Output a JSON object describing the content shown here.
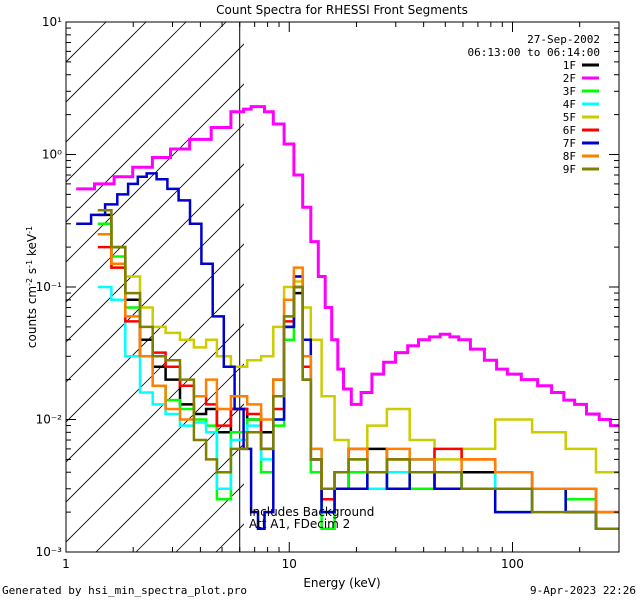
{
  "chart_data": {
    "type": "line",
    "title": "Count Spectra for RHESSI Front Segments",
    "xlabel": "Energy (keV)",
    "ylabel": "counts cm⁻² s⁻¹ keV⁻¹",
    "xscale": "log",
    "yscale": "log",
    "xlim": [
      1,
      300
    ],
    "ylim": [
      0.001,
      10
    ],
    "x_ticks": [
      {
        "value": 1,
        "label": "1"
      },
      {
        "value": 10,
        "label": "10"
      },
      {
        "value": 100,
        "label": "100"
      }
    ],
    "y_ticks": [
      {
        "value": 0.001,
        "label": "10⁻³"
      },
      {
        "value": 0.01,
        "label": "10⁻²"
      },
      {
        "value": 0.1,
        "label": "10⁻¹"
      },
      {
        "value": 1,
        "label": "10⁰"
      },
      {
        "value": 10,
        "label": "10¹"
      }
    ],
    "date": "27-Sep-2002",
    "time_range": "06:13:00 to 06:14:00",
    "hatched_below_kev": 6,
    "annotations": [
      "Includes Background",
      "Att A1, FDecim 2"
    ],
    "footer_left": "Generated by hsi_min_spectra_plot.pro",
    "footer_right": "9-Apr-2023 22:26",
    "series": [
      {
        "name": "1F",
        "color": "#000000",
        "x": [
          1.5,
          1.7,
          2.0,
          2.3,
          2.6,
          3.0,
          3.5,
          4.0,
          4.5,
          5.0,
          6.0,
          7.0,
          8.0,
          9.0,
          10.0,
          11.0,
          12.0,
          13.0,
          15.0,
          17.0,
          20.0,
          25.0,
          30.0,
          40.0,
          50.0,
          70.0,
          100.0,
          150.0,
          200.0,
          280.0
        ],
        "y": [
          0.35,
          0.2,
          0.08,
          0.04,
          0.025,
          0.02,
          0.013,
          0.011,
          0.012,
          0.008,
          0.012,
          0.01,
          0.008,
          0.02,
          0.05,
          0.09,
          0.02,
          0.005,
          0.002,
          0.004,
          0.003,
          0.006,
          0.003,
          0.005,
          0.003,
          0.004,
          0.003,
          0.003,
          0.002,
          0.0015
        ]
      },
      {
        "name": "2F",
        "color": "#ff00ff",
        "x": [
          1.2,
          1.5,
          1.8,
          2.2,
          2.7,
          3.2,
          4.0,
          5.0,
          6.0,
          6.5,
          7.0,
          7.5,
          8.0,
          9.0,
          10.0,
          11.0,
          12.0,
          13.0,
          14.0,
          15.0,
          16.0,
          17.0,
          18.0,
          20.0,
          22.0,
          25.0,
          28.0,
          32.0,
          36.0,
          40.0,
          45.0,
          50.0,
          55.0,
          60.0,
          70.0,
          80.0,
          90.0,
          100.0,
          120.0,
          140.0,
          160.0,
          180.0,
          200.0,
          230.0,
          260.0,
          290.0
        ],
        "y": [
          0.55,
          0.6,
          0.68,
          0.8,
          0.95,
          1.1,
          1.3,
          1.6,
          2.1,
          2.2,
          2.3,
          2.3,
          2.1,
          1.7,
          1.2,
          0.7,
          0.4,
          0.22,
          0.12,
          0.07,
          0.04,
          0.024,
          0.017,
          0.013,
          0.016,
          0.022,
          0.027,
          0.032,
          0.036,
          0.04,
          0.042,
          0.044,
          0.042,
          0.04,
          0.034,
          0.028,
          0.024,
          0.022,
          0.02,
          0.018,
          0.016,
          0.014,
          0.013,
          0.011,
          0.01,
          0.009
        ]
      },
      {
        "name": "3F",
        "color": "#00ff00",
        "x": [
          1.5,
          1.7,
          2.0,
          2.3,
          2.6,
          3.0,
          3.5,
          4.0,
          4.5,
          5.0,
          6.0,
          7.0,
          8.0,
          9.0,
          10.0,
          11.0,
          12.0,
          13.0,
          15.0,
          17.0,
          20.0,
          25.0,
          30.0,
          40.0,
          50.0,
          70.0,
          100.0,
          150.0,
          200.0,
          280.0
        ],
        "y": [
          0.3,
          0.17,
          0.07,
          0.03,
          0.018,
          0.014,
          0.012,
          0.01,
          0.009,
          0.0025,
          0.008,
          0.01,
          0.004,
          0.009,
          0.04,
          0.1,
          0.03,
          0.004,
          0.0015,
          0.003,
          0.004,
          0.003,
          0.005,
          0.003,
          0.004,
          0.003,
          0.002,
          0.003,
          0.0025,
          0.0015
        ]
      },
      {
        "name": "4F",
        "color": "#00ffff",
        "x": [
          1.5,
          1.7,
          2.0,
          2.3,
          2.6,
          3.0,
          3.5,
          4.0,
          4.5,
          5.0,
          6.0,
          7.0,
          8.0,
          9.0,
          10.0,
          11.0,
          12.0,
          13.0,
          15.0,
          17.0,
          20.0,
          25.0,
          30.0,
          40.0,
          50.0,
          70.0,
          100.0,
          150.0,
          200.0,
          280.0
        ],
        "y": [
          0.1,
          0.08,
          0.03,
          0.016,
          0.013,
          0.011,
          0.009,
          0.0095,
          0.008,
          0.003,
          0.007,
          0.009,
          0.005,
          0.01,
          0.06,
          0.12,
          0.03,
          0.006,
          0.002,
          0.004,
          0.005,
          0.003,
          0.004,
          0.005,
          0.004,
          0.003,
          0.004,
          0.003,
          0.002,
          0.0015
        ]
      },
      {
        "name": "5F",
        "color": "#cccc00",
        "x": [
          1.5,
          1.7,
          2.0,
          2.3,
          2.6,
          3.0,
          3.5,
          4.0,
          4.5,
          5.0,
          6.0,
          7.0,
          8.0,
          9.0,
          10.0,
          11.0,
          12.0,
          13.0,
          15.0,
          17.0,
          20.0,
          25.0,
          30.0,
          40.0,
          50.0,
          70.0,
          100.0,
          150.0,
          200.0,
          280.0
        ],
        "y": [
          0.25,
          0.14,
          0.12,
          0.07,
          0.05,
          0.045,
          0.04,
          0.035,
          0.04,
          0.03,
          0.025,
          0.028,
          0.03,
          0.05,
          0.1,
          0.11,
          0.07,
          0.04,
          0.015,
          0.007,
          0.005,
          0.009,
          0.012,
          0.007,
          0.005,
          0.006,
          0.01,
          0.008,
          0.006,
          0.004
        ]
      },
      {
        "name": "6F",
        "color": "#ff0000",
        "x": [
          1.5,
          1.7,
          2.0,
          2.3,
          2.6,
          3.0,
          3.5,
          4.0,
          4.5,
          5.0,
          6.0,
          7.0,
          8.0,
          9.0,
          10.0,
          11.0,
          12.0,
          13.0,
          15.0,
          17.0,
          20.0,
          25.0,
          30.0,
          40.0,
          50.0,
          70.0,
          100.0,
          150.0,
          200.0,
          280.0
        ],
        "y": [
          0.2,
          0.14,
          0.055,
          0.03,
          0.032,
          0.025,
          0.018,
          0.015,
          0.013,
          0.009,
          0.012,
          0.011,
          0.006,
          0.012,
          0.055,
          0.1,
          0.025,
          0.005,
          0.0025,
          0.004,
          0.006,
          0.004,
          0.005,
          0.004,
          0.006,
          0.005,
          0.004,
          0.003,
          0.003,
          0.002
        ]
      },
      {
        "name": "7F",
        "color": "#0000cc",
        "x": [
          1.2,
          1.4,
          1.6,
          1.8,
          2.0,
          2.2,
          2.4,
          2.7,
          3.0,
          3.4,
          3.8,
          4.3,
          4.8,
          5.4,
          6.0,
          6.5,
          7.0,
          7.5,
          8.0,
          9.0,
          10.0,
          11.0,
          12.0,
          13.0,
          15.0,
          17.0,
          20.0,
          25.0,
          30.0,
          40.0,
          50.0,
          70.0,
          100.0,
          150.0,
          200.0,
          280.0
        ],
        "y": [
          0.3,
          0.35,
          0.42,
          0.5,
          0.6,
          0.68,
          0.72,
          0.65,
          0.55,
          0.45,
          0.3,
          0.15,
          0.06,
          0.025,
          0.012,
          0.006,
          0.002,
          0.0015,
          0.002,
          0.01,
          0.05,
          0.12,
          0.04,
          0.005,
          0.002,
          0.003,
          0.003,
          0.004,
          0.003,
          0.004,
          0.003,
          0.003,
          0.002,
          0.003,
          0.002,
          0.0015
        ]
      },
      {
        "name": "8F",
        "color": "#ff8000",
        "x": [
          1.5,
          1.7,
          2.0,
          2.3,
          2.6,
          3.0,
          3.5,
          4.0,
          4.5,
          5.0,
          6.0,
          7.0,
          8.0,
          9.0,
          10.0,
          11.0,
          12.0,
          13.0,
          15.0,
          17.0,
          20.0,
          25.0,
          30.0,
          40.0,
          50.0,
          70.0,
          100.0,
          150.0,
          200.0,
          280.0
        ],
        "y": [
          0.25,
          0.15,
          0.06,
          0.03,
          0.018,
          0.012,
          0.01,
          0.015,
          0.02,
          0.012,
          0.015,
          0.013,
          0.01,
          0.02,
          0.08,
          0.14,
          0.03,
          0.006,
          0.003,
          0.004,
          0.006,
          0.004,
          0.006,
          0.005,
          0.004,
          0.005,
          0.004,
          0.003,
          0.003,
          0.002
        ]
      },
      {
        "name": "9F",
        "color": "#808000",
        "x": [
          1.5,
          1.7,
          2.0,
          2.3,
          2.6,
          3.0,
          3.5,
          4.0,
          4.5,
          5.0,
          6.0,
          7.0,
          8.0,
          9.0,
          10.0,
          11.0,
          12.0,
          13.0,
          15.0,
          17.0,
          20.0,
          25.0,
          30.0,
          40.0,
          50.0,
          70.0,
          100.0,
          150.0,
          200.0,
          280.0
        ],
        "y": [
          0.38,
          0.2,
          0.09,
          0.05,
          0.03,
          0.028,
          0.02,
          0.007,
          0.005,
          0.004,
          0.006,
          0.008,
          0.006,
          0.015,
          0.06,
          0.1,
          0.02,
          0.005,
          0.003,
          0.004,
          0.005,
          0.004,
          0.005,
          0.004,
          0.004,
          0.003,
          0.003,
          0.002,
          0.002,
          0.0015
        ]
      }
    ]
  }
}
